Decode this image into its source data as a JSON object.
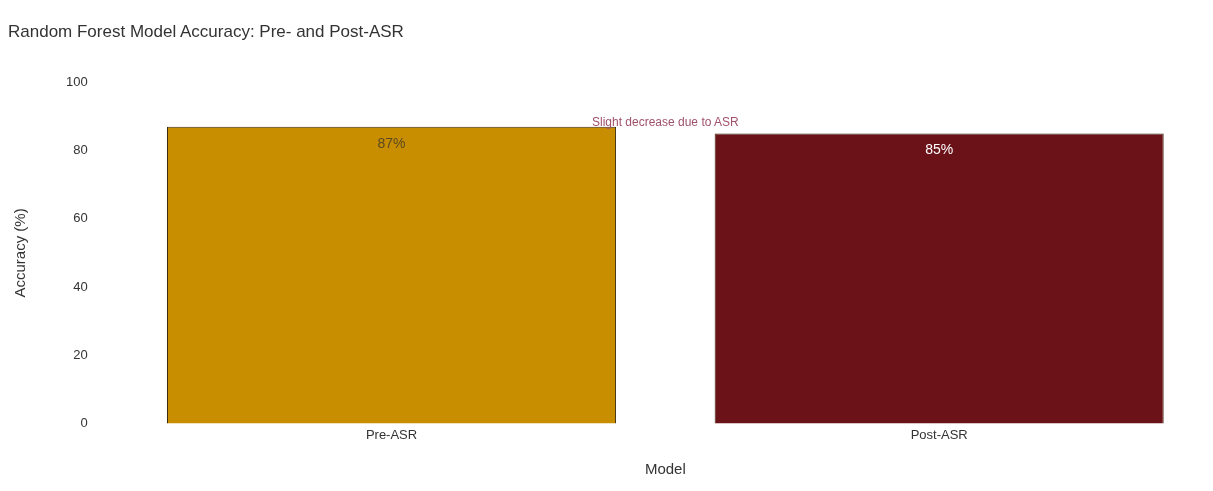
{
  "chart_data": {
    "type": "bar",
    "title": "Random Forest Model Accuracy: Pre- and Post-ASR",
    "xlabel": "Model",
    "ylabel": "Accuracy (%)",
    "categories": [
      "Pre-ASR",
      "Post-ASR"
    ],
    "values": [
      87,
      85
    ],
    "colors": [
      "#c98e00",
      "#6b1219"
    ],
    "value_labels": [
      "87%",
      "85%"
    ],
    "ylim": [
      0,
      100
    ],
    "yticks": [
      0,
      20,
      40,
      60,
      80,
      100
    ],
    "grid": false,
    "legend": false,
    "annotations": [
      "Slight decrease due to ASR"
    ]
  }
}
